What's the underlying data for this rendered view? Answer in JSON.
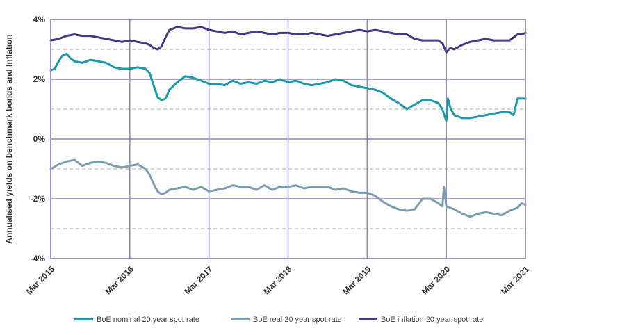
{
  "chart_data": {
    "type": "line",
    "title": "",
    "ylabel": "Annualised yields on benchmark bonds and Inflation",
    "xlabel": "",
    "xlim": [
      2015.0,
      2021.0
    ],
    "ylim": [
      -4,
      4
    ],
    "x_ticks": [
      {
        "value": 2015,
        "label": "Mar 2015"
      },
      {
        "value": 2016,
        "label": "Mar 2016"
      },
      {
        "value": 2017,
        "label": "Mar 2017"
      },
      {
        "value": 2018,
        "label": "Mar 2018"
      },
      {
        "value": 2019,
        "label": "Mar 2019"
      },
      {
        "value": 2020,
        "label": "Mar 2020"
      },
      {
        "value": 2021,
        "label": "Mar 2021"
      }
    ],
    "y_ticks": [
      {
        "value": 4,
        "label": "4%"
      },
      {
        "value": 2,
        "label": "2%"
      },
      {
        "value": 0,
        "label": "0%"
      },
      {
        "value": -2,
        "label": "-2%"
      },
      {
        "value": -4,
        "label": "-4%"
      }
    ],
    "minor_y_gridlines": [
      3,
      1,
      -1,
      -3
    ],
    "grid": true,
    "legend_position": "bottom",
    "series": [
      {
        "name": "BoE nominal 20 year spot rate",
        "color": "#1a9aaa",
        "x": [
          2015.0,
          2015.05,
          2015.1,
          2015.15,
          2015.2,
          2015.25,
          2015.3,
          2015.4,
          2015.5,
          2015.6,
          2015.7,
          2015.8,
          2015.9,
          2016.0,
          2016.1,
          2016.2,
          2016.25,
          2016.3,
          2016.35,
          2016.4,
          2016.45,
          2016.5,
          2016.6,
          2016.7,
          2016.8,
          2016.9,
          2017.0,
          2017.1,
          2017.2,
          2017.3,
          2017.4,
          2017.5,
          2017.6,
          2017.7,
          2017.8,
          2017.9,
          2018.0,
          2018.1,
          2018.2,
          2018.3,
          2018.4,
          2018.5,
          2018.6,
          2018.7,
          2018.8,
          2018.9,
          2019.0,
          2019.1,
          2019.2,
          2019.3,
          2019.4,
          2019.5,
          2019.6,
          2019.7,
          2019.8,
          2019.9,
          2019.95,
          2020.0,
          2020.02,
          2020.05,
          2020.1,
          2020.2,
          2020.3,
          2020.4,
          2020.5,
          2020.6,
          2020.7,
          2020.8,
          2020.85,
          2020.9,
          2021.0
        ],
        "values": [
          2.3,
          2.35,
          2.6,
          2.8,
          2.85,
          2.7,
          2.6,
          2.55,
          2.65,
          2.6,
          2.55,
          2.4,
          2.35,
          2.35,
          2.4,
          2.35,
          2.2,
          1.8,
          1.4,
          1.3,
          1.35,
          1.65,
          1.9,
          2.1,
          2.05,
          1.95,
          1.85,
          1.85,
          1.8,
          1.95,
          1.85,
          1.9,
          1.85,
          1.95,
          1.9,
          2.0,
          1.9,
          1.95,
          1.85,
          1.8,
          1.85,
          1.9,
          2.0,
          1.95,
          1.8,
          1.75,
          1.7,
          1.65,
          1.55,
          1.35,
          1.2,
          1.0,
          1.15,
          1.3,
          1.3,
          1.2,
          1.0,
          0.6,
          1.35,
          1.05,
          0.8,
          0.7,
          0.7,
          0.75,
          0.8,
          0.85,
          0.9,
          0.9,
          0.8,
          1.35,
          1.35
        ]
      },
      {
        "name": "BoE real 20 year spot rate",
        "color": "#7a9eaf",
        "x": [
          2015.0,
          2015.1,
          2015.2,
          2015.3,
          2015.4,
          2015.5,
          2015.6,
          2015.7,
          2015.8,
          2015.9,
          2016.0,
          2016.1,
          2016.2,
          2016.25,
          2016.3,
          2016.35,
          2016.4,
          2016.45,
          2016.5,
          2016.6,
          2016.7,
          2016.8,
          2016.9,
          2017.0,
          2017.1,
          2017.2,
          2017.3,
          2017.4,
          2017.5,
          2017.6,
          2017.7,
          2017.8,
          2017.9,
          2018.0,
          2018.1,
          2018.2,
          2018.3,
          2018.4,
          2018.5,
          2018.6,
          2018.7,
          2018.8,
          2018.9,
          2019.0,
          2019.1,
          2019.2,
          2019.3,
          2019.4,
          2019.5,
          2019.6,
          2019.7,
          2019.8,
          2019.9,
          2019.95,
          2019.97,
          2020.0,
          2020.1,
          2020.2,
          2020.3,
          2020.4,
          2020.5,
          2020.6,
          2020.7,
          2020.8,
          2020.9,
          2020.95,
          2021.0
        ],
        "values": [
          -1.0,
          -0.85,
          -0.75,
          -0.7,
          -0.9,
          -0.8,
          -0.75,
          -0.8,
          -0.9,
          -0.95,
          -0.9,
          -0.85,
          -1.0,
          -1.2,
          -1.5,
          -1.75,
          -1.85,
          -1.8,
          -1.7,
          -1.65,
          -1.6,
          -1.7,
          -1.6,
          -1.75,
          -1.7,
          -1.65,
          -1.55,
          -1.6,
          -1.6,
          -1.7,
          -1.55,
          -1.7,
          -1.6,
          -1.6,
          -1.55,
          -1.65,
          -1.6,
          -1.6,
          -1.6,
          -1.7,
          -1.65,
          -1.75,
          -1.8,
          -1.8,
          -1.9,
          -2.1,
          -2.25,
          -2.35,
          -2.4,
          -2.35,
          -2.0,
          -2.0,
          -2.15,
          -2.25,
          -1.6,
          -2.25,
          -2.35,
          -2.5,
          -2.6,
          -2.5,
          -2.45,
          -2.5,
          -2.55,
          -2.4,
          -2.3,
          -2.15,
          -2.2
        ]
      },
      {
        "name": "BoE inflation 20 year spot rate",
        "color": "#3f3b85",
        "x": [
          2015.0,
          2015.1,
          2015.2,
          2015.3,
          2015.4,
          2015.5,
          2015.6,
          2015.7,
          2015.8,
          2015.9,
          2016.0,
          2016.1,
          2016.2,
          2016.25,
          2016.3,
          2016.35,
          2016.4,
          2016.45,
          2016.5,
          2016.6,
          2016.7,
          2016.8,
          2016.9,
          2017.0,
          2017.1,
          2017.2,
          2017.3,
          2017.4,
          2017.5,
          2017.6,
          2017.7,
          2017.8,
          2017.9,
          2018.0,
          2018.1,
          2018.2,
          2018.3,
          2018.4,
          2018.5,
          2018.6,
          2018.7,
          2018.8,
          2018.9,
          2019.0,
          2019.1,
          2019.2,
          2019.3,
          2019.4,
          2019.5,
          2019.6,
          2019.7,
          2019.8,
          2019.9,
          2019.95,
          2020.0,
          2020.05,
          2020.1,
          2020.2,
          2020.3,
          2020.4,
          2020.5,
          2020.6,
          2020.7,
          2020.8,
          2020.9,
          2020.95,
          2021.0
        ],
        "values": [
          3.3,
          3.35,
          3.45,
          3.5,
          3.45,
          3.45,
          3.4,
          3.35,
          3.3,
          3.25,
          3.3,
          3.25,
          3.2,
          3.15,
          3.05,
          3.0,
          3.1,
          3.4,
          3.65,
          3.75,
          3.7,
          3.7,
          3.75,
          3.65,
          3.6,
          3.55,
          3.6,
          3.5,
          3.55,
          3.6,
          3.55,
          3.5,
          3.55,
          3.55,
          3.5,
          3.5,
          3.55,
          3.5,
          3.45,
          3.5,
          3.55,
          3.6,
          3.65,
          3.6,
          3.65,
          3.6,
          3.55,
          3.5,
          3.5,
          3.35,
          3.3,
          3.3,
          3.3,
          3.2,
          2.9,
          3.05,
          3.0,
          3.15,
          3.25,
          3.3,
          3.35,
          3.3,
          3.3,
          3.3,
          3.5,
          3.5,
          3.55
        ]
      }
    ]
  }
}
